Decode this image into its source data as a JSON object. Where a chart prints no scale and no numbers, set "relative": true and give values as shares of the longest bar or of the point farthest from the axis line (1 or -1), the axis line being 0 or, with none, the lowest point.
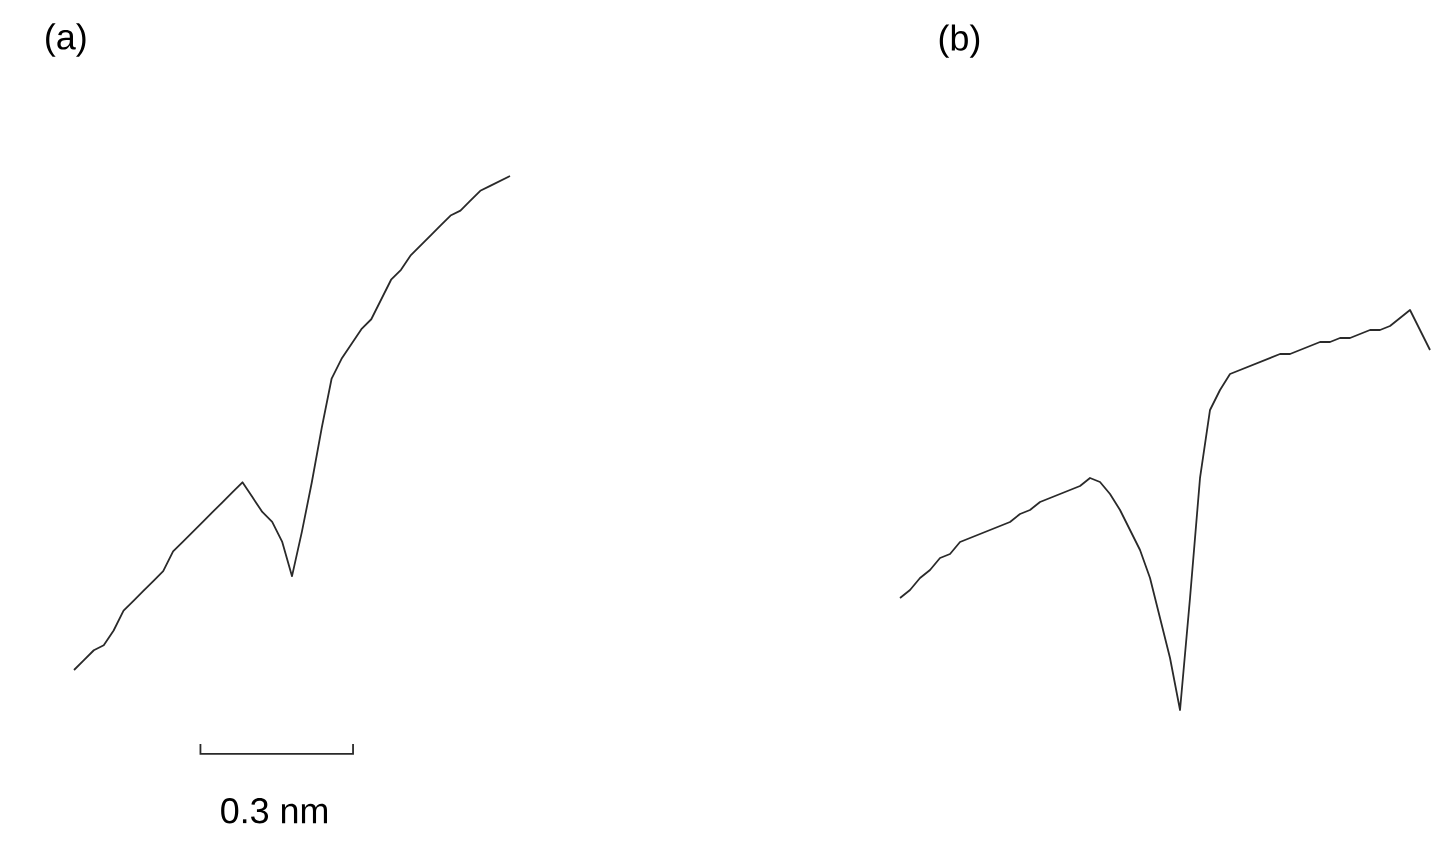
{
  "chart_data": [
    {
      "type": "line",
      "title": "(a)",
      "relative": true,
      "color": "#2a2a2a",
      "categories": [
        null,
        null,
        null,
        null,
        null,
        null,
        null,
        null,
        null,
        null,
        null,
        null,
        null,
        null,
        null,
        null,
        null,
        null,
        null,
        null,
        null,
        null,
        null,
        null,
        null,
        null,
        null,
        null,
        null,
        null,
        null,
        null,
        null,
        null,
        null,
        null,
        null,
        null,
        null,
        null,
        null,
        null,
        null,
        null,
        null
      ],
      "values": [
        0,
        0.02,
        0.04,
        0.05,
        0.08,
        0.12,
        0.14,
        0.16,
        0.18,
        0.2,
        0.24,
        0.26,
        0.28,
        0.3,
        0.32,
        0.34,
        0.36,
        0.38,
        0.35,
        0.32,
        0.3,
        0.26,
        0.19,
        0.28,
        0.38,
        0.49,
        0.59,
        0.63,
        0.66,
        0.69,
        0.71,
        0.75,
        0.79,
        0.81,
        0.84,
        0.86,
        0.88,
        0.9,
        0.92,
        0.93,
        0.95,
        0.97,
        0.98,
        0.99,
        1
      ],
      "annotations": [
        "0.3 nm"
      ]
    },
    {
      "type": "line",
      "title": "(b)",
      "relative": true,
      "color": "#2a2a2a",
      "categories": [
        null,
        null,
        null,
        null,
        null,
        null,
        null,
        null,
        null,
        null,
        null,
        null,
        null,
        null,
        null,
        null,
        null,
        null,
        null,
        null,
        null,
        null,
        null,
        null,
        null,
        null,
        null,
        null,
        null,
        null,
        null,
        null,
        null,
        null,
        null,
        null,
        null,
        null,
        null,
        null,
        null,
        null,
        null,
        null,
        null,
        null,
        null,
        null,
        null,
        null,
        null,
        null,
        null,
        null
      ],
      "values": [
        0.28,
        0.3,
        0.33,
        0.35,
        0.38,
        0.39,
        0.42,
        0.43,
        0.44,
        0.45,
        0.46,
        0.47,
        0.49,
        0.5,
        0.52,
        0.53,
        0.54,
        0.55,
        0.56,
        0.58,
        0.57,
        0.54,
        0.5,
        0.45,
        0.4,
        0.33,
        0.23,
        0.13,
        0,
        0.28,
        0.58,
        0.75,
        0.8,
        0.84,
        0.85,
        0.86,
        0.87,
        0.88,
        0.89,
        0.89,
        0.9,
        0.91,
        0.92,
        0.92,
        0.93,
        0.93,
        0.94,
        0.95,
        0.95,
        0.96,
        0.98,
        1,
        0.95,
        0.9
      ]
    }
  ]
}
